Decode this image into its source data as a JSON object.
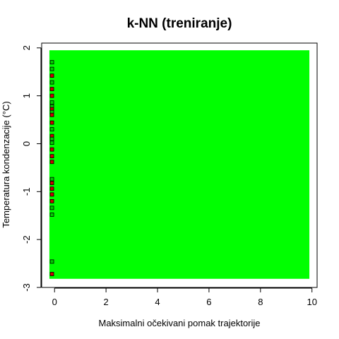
{
  "chart_data": {
    "type": "scatter",
    "title": "k-NN (treniranje)",
    "xlabel": "Maksimalni očekivani pomak trajektorije",
    "ylabel": "Temperatura kondenzacije (°C)",
    "xlim": [
      -0.5,
      10.2
    ],
    "ylim": [
      -3.0,
      2.1
    ],
    "x_ticks": [
      0,
      2,
      4,
      6,
      8,
      10
    ],
    "y_ticks": [
      -3,
      -2,
      -1,
      0,
      1,
      2
    ],
    "x_tick_labels": [
      "0",
      "2",
      "4",
      "6",
      "8",
      "10"
    ],
    "y_tick_labels": [
      "-3",
      "-2",
      "-1",
      "0",
      "1",
      "2"
    ],
    "grid": false,
    "background_region": {
      "x_range": [
        -0.2,
        9.9
      ],
      "y_range": [
        -2.82,
        1.95
      ],
      "color": "#00ff00"
    },
    "class_colors": {
      "class_a": "#00cc00",
      "class_b": "#cc0000"
    },
    "points": [
      {
        "x": -0.1,
        "y": 1.7,
        "class": "class_a"
      },
      {
        "x": -0.1,
        "y": 1.56,
        "class": "class_a"
      },
      {
        "x": -0.1,
        "y": 1.42,
        "class": "class_b"
      },
      {
        "x": -0.1,
        "y": 1.28,
        "class": "class_a"
      },
      {
        "x": -0.1,
        "y": 1.14,
        "class": "class_b"
      },
      {
        "x": -0.1,
        "y": 1.0,
        "class": "class_b"
      },
      {
        "x": -0.1,
        "y": 0.86,
        "class": "class_a"
      },
      {
        "x": -0.1,
        "y": 0.78,
        "class": "class_a"
      },
      {
        "x": -0.1,
        "y": 0.72,
        "class": "class_b"
      },
      {
        "x": -0.1,
        "y": 0.66,
        "class": "class_a"
      },
      {
        "x": -0.1,
        "y": 0.6,
        "class": "class_b"
      },
      {
        "x": -0.1,
        "y": 0.44,
        "class": "class_b"
      },
      {
        "x": -0.1,
        "y": 0.3,
        "class": "class_a"
      },
      {
        "x": -0.1,
        "y": 0.16,
        "class": "class_b"
      },
      {
        "x": -0.1,
        "y": 0.1,
        "class": "class_a"
      },
      {
        "x": -0.1,
        "y": 0.02,
        "class": "class_a"
      },
      {
        "x": -0.1,
        "y": -0.12,
        "class": "class_b"
      },
      {
        "x": -0.1,
        "y": -0.26,
        "class": "class_b"
      },
      {
        "x": -0.1,
        "y": -0.38,
        "class": "class_b"
      },
      {
        "x": -0.1,
        "y": -0.74,
        "class": "class_a"
      },
      {
        "x": -0.1,
        "y": -0.82,
        "class": "class_b"
      },
      {
        "x": -0.1,
        "y": -0.94,
        "class": "class_b"
      },
      {
        "x": -0.1,
        "y": -1.06,
        "class": "class_b"
      },
      {
        "x": -0.1,
        "y": -1.2,
        "class": "class_b"
      },
      {
        "x": -0.1,
        "y": -1.34,
        "class": "class_a"
      },
      {
        "x": -0.1,
        "y": -1.48,
        "class": "class_a"
      },
      {
        "x": -0.1,
        "y": -2.46,
        "class": "class_a"
      },
      {
        "x": -0.1,
        "y": -2.72,
        "class": "class_b"
      }
    ]
  }
}
